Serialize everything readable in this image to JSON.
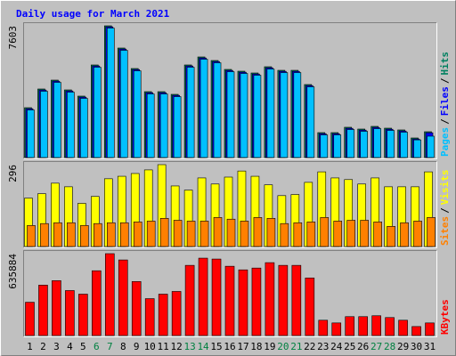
{
  "chart_data": [
    {
      "type": "bar",
      "title": "Daily usage for March 2021",
      "ylim": [
        0,
        7603
      ],
      "yticks": [
        7603
      ],
      "legend_separator": "/",
      "series": [
        {
          "name": "Hits",
          "color": "#008060",
          "values": [
            2877,
            3956,
            4469,
            3904,
            3545,
            5343,
            7603,
            6319,
            5137,
            3802,
            3802,
            3647,
            5343,
            5805,
            5600,
            5086,
            4983,
            4880,
            5240,
            5034,
            5034,
            4213,
            1438,
            1438,
            1747,
            1644,
            1798,
            1695,
            1593,
            1130,
            1490
          ]
        },
        {
          "name": "Files",
          "color": "#0000ff",
          "values": [
            2817,
            3896,
            4409,
            3844,
            3485,
            5283,
            7543,
            6259,
            5077,
            3742,
            3742,
            3587,
            5283,
            5745,
            5540,
            5026,
            4923,
            4820,
            5180,
            4974,
            4974,
            4153,
            1378,
            1378,
            1687,
            1584,
            1738,
            1635,
            1533,
            1070,
            1430
          ]
        },
        {
          "name": "Pages",
          "color": "#00c0ff",
          "values": [
            2747,
            3826,
            4339,
            3774,
            3415,
            5213,
            7473,
            6189,
            5007,
            3672,
            3672,
            3517,
            5213,
            5675,
            5470,
            4956,
            4853,
            4750,
            5110,
            4904,
            4904,
            4083,
            1308,
            1308,
            1617,
            1514,
            1668,
            1565,
            1463,
            1020,
            1233
          ]
        }
      ]
    },
    {
      "type": "bar",
      "ylim": [
        0,
        296
      ],
      "yticks": [
        296
      ],
      "legend_separator": "/",
      "series": [
        {
          "name": "Visits",
          "color": "#ffff00",
          "values": [
            175,
            191,
            229,
            216,
            156,
            181,
            245,
            254,
            264,
            277,
            296,
            219,
            204,
            248,
            226,
            251,
            273,
            254,
            223,
            184,
            188,
            232,
            270,
            248,
            242,
            226,
            248,
            216,
            216,
            216,
            270
          ]
        },
        {
          "name": "Sites",
          "color": "#ff8000",
          "values": [
            76,
            83,
            86,
            86,
            76,
            83,
            86,
            86,
            89,
            92,
            102,
            95,
            92,
            92,
            105,
            99,
            92,
            105,
            102,
            83,
            86,
            89,
            105,
            92,
            95,
            95,
            89,
            73,
            86,
            92,
            105
          ]
        }
      ]
    },
    {
      "type": "bar",
      "ylim": [
        0,
        635884
      ],
      "yticks": [
        635884
      ],
      "categories": [
        "1",
        "2",
        "3",
        "4",
        "5",
        "6",
        "7",
        "8",
        "9",
        "10",
        "11",
        "12",
        "13",
        "14",
        "15",
        "16",
        "17",
        "18",
        "19",
        "20",
        "21",
        "22",
        "23",
        "24",
        "25",
        "26",
        "27",
        "28",
        "29",
        "30",
        "31"
      ],
      "category_colors": [
        "#000000",
        "#000000",
        "#000000",
        "#000000",
        "#000000",
        "#008040",
        "#008040",
        "#000000",
        "#000000",
        "#000000",
        "#000000",
        "#000000",
        "#008040",
        "#008040",
        "#000000",
        "#000000",
        "#000000",
        "#000000",
        "#000000",
        "#008040",
        "#008040",
        "#000000",
        "#000000",
        "#000000",
        "#000000",
        "#000000",
        "#008040",
        "#008040",
        "#000000",
        "#000000",
        "#000000"
      ],
      "series": [
        {
          "name": "KBytes",
          "color": "#ff0000",
          "values": [
            258556,
            391328,
            426268,
            349400,
            321448,
            503136,
            635884,
            586992,
            419280,
            286508,
            321448,
            342412,
            545064,
            600968,
            593980,
            538076,
            510124,
            524100,
            566028,
            545064,
            545064,
            447232,
            118796,
            97832,
            146748,
            146748,
            153736,
            139760,
            118796,
            69880,
            97832
          ]
        }
      ]
    }
  ]
}
